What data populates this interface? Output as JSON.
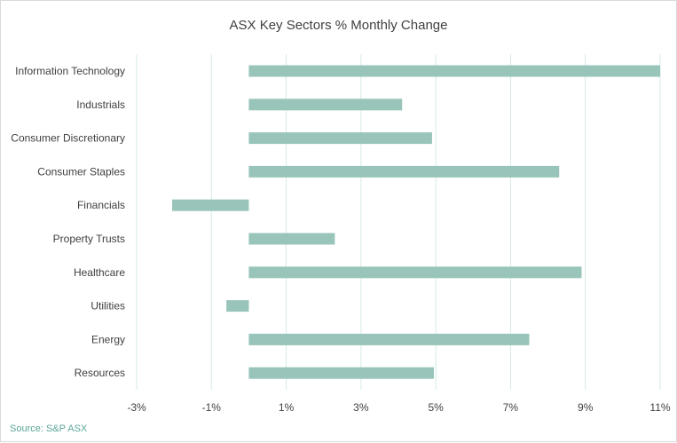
{
  "chart_data": {
    "type": "bar",
    "orientation": "horizontal",
    "title": "ASX Key Sectors % Monthly Change",
    "categories": [
      "Information Technology",
      "Industrials",
      "Consumer Discretionary",
      "Consumer Staples",
      "Financials",
      "Property Trusts",
      "Healthcare",
      "Utilities",
      "Energy",
      "Resources"
    ],
    "values": [
      11.0,
      4.1,
      4.9,
      8.3,
      -2.05,
      2.3,
      8.9,
      -0.6,
      7.5,
      4.95
    ],
    "xlim": [
      -3,
      11
    ],
    "xticks": [
      -3,
      -1,
      1,
      3,
      5,
      7,
      9,
      11
    ],
    "xtick_labels": [
      "-3%",
      "-1%",
      "1%",
      "3%",
      "5%",
      "7%",
      "9%",
      "11%"
    ],
    "xlabel": "",
    "ylabel": "",
    "grid": "vertical",
    "legend": "none",
    "bar_color": "#98c4ba",
    "grid_color": "#d5ebe6"
  },
  "source": "Source: S&P ASX"
}
